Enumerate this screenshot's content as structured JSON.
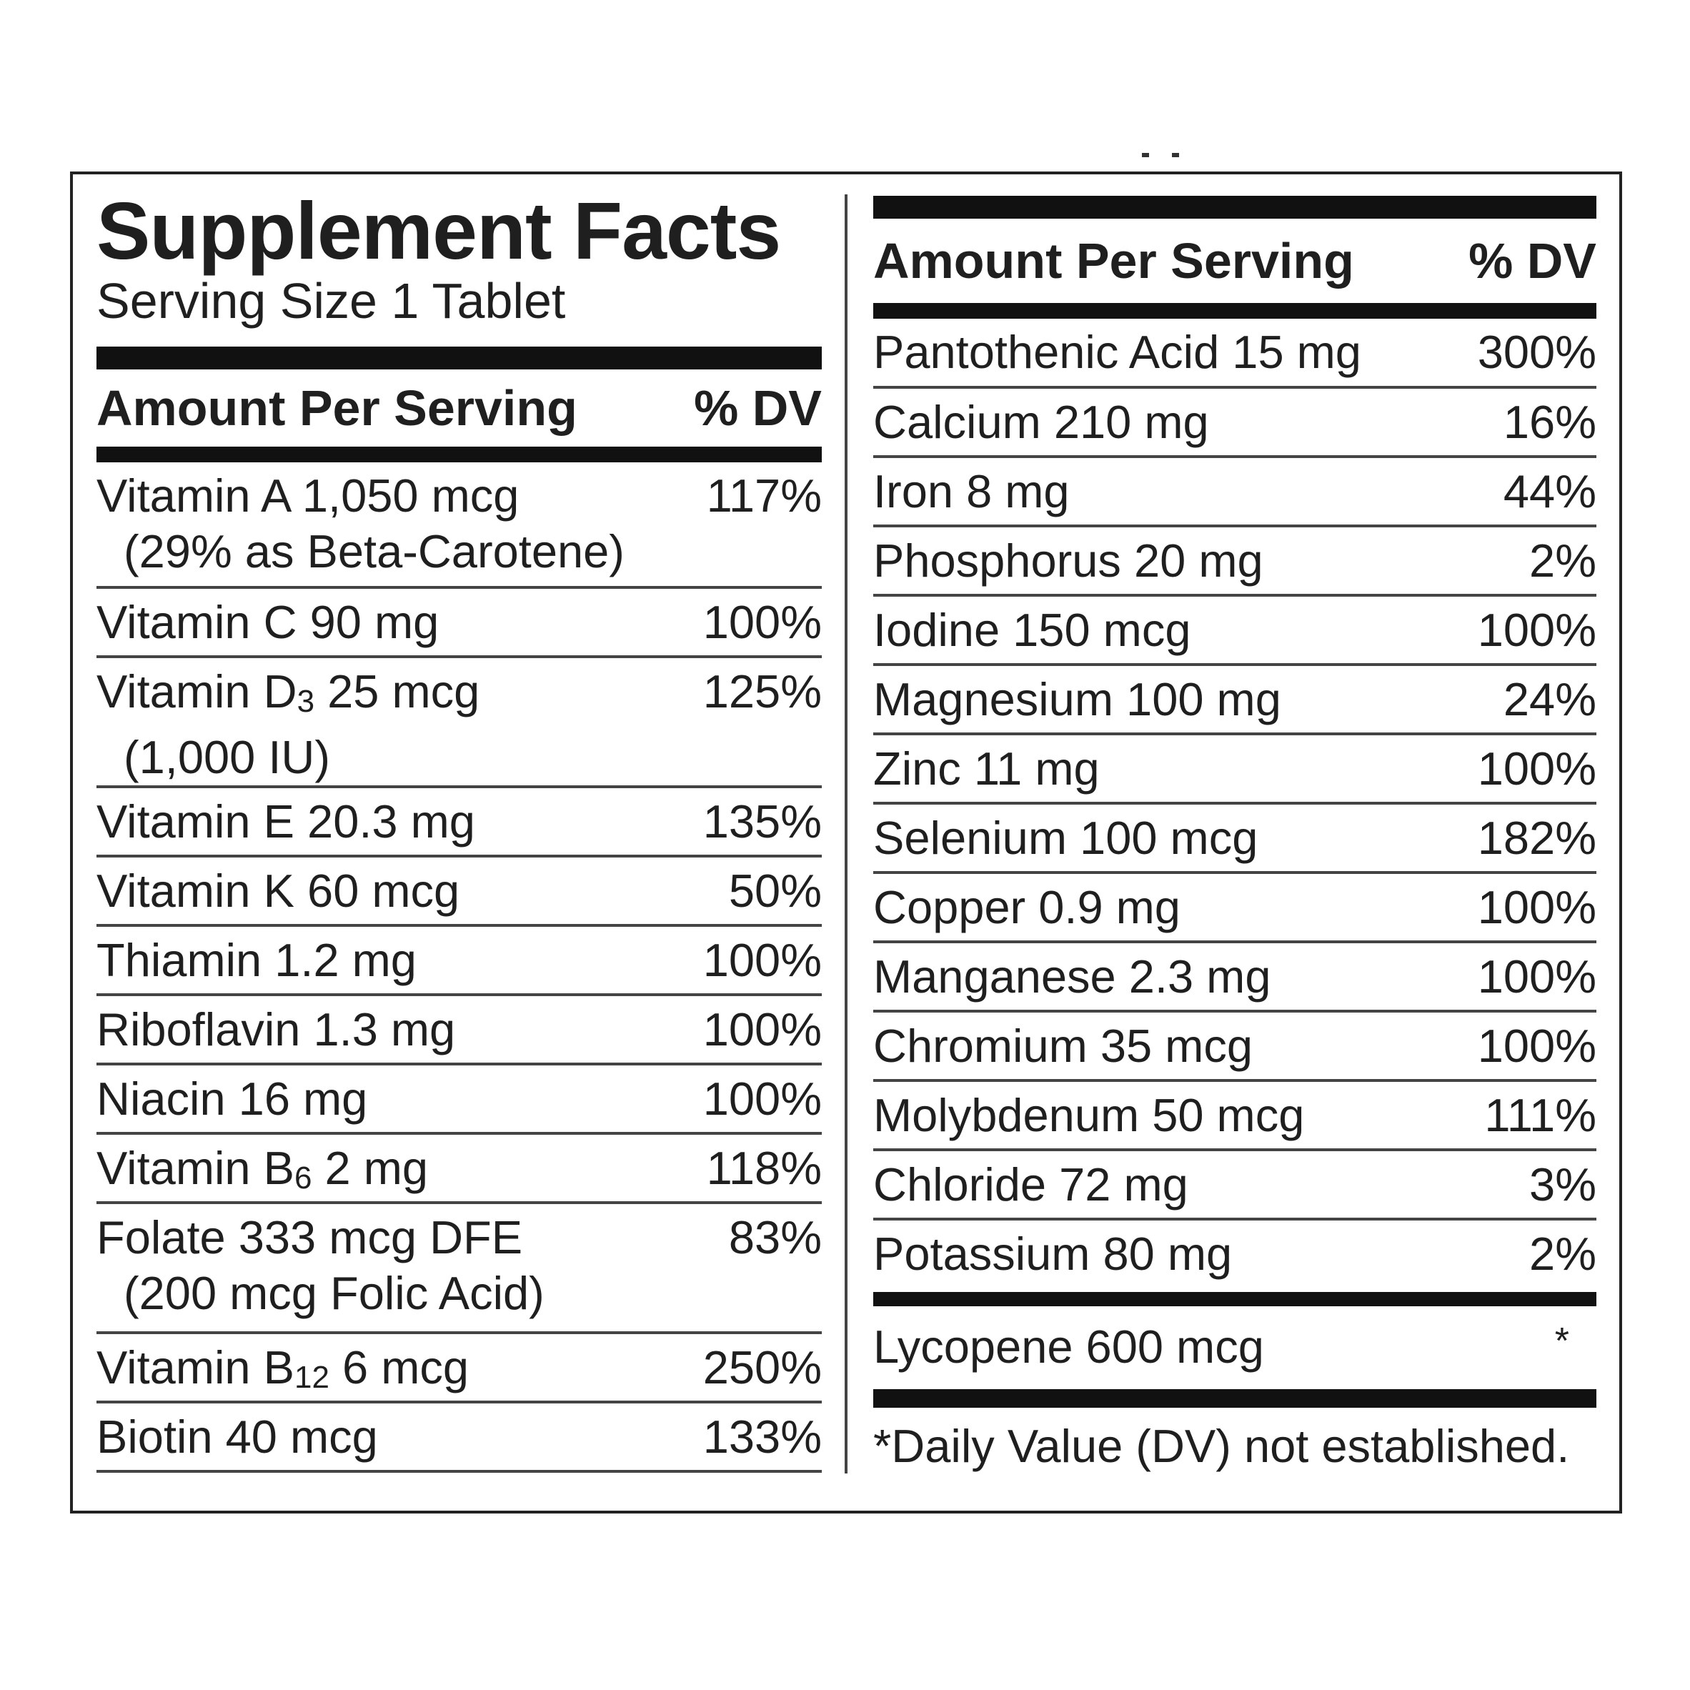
{
  "panel": {
    "title": "Supplement Facts",
    "serving_size": "Serving Size 1 Tablet",
    "amount_header": "Amount Per Serving",
    "dv_header": "% DV"
  },
  "left_rows": [
    {
      "name": "Vitamin A 1,050 mcg",
      "sub": "(29% as Beta-Carotene)",
      "dv": "117%"
    },
    {
      "name": "Vitamin C 90 mg",
      "dv": "100%"
    },
    {
      "name_pre": "Vitamin D",
      "name_sub": "3",
      "name_post": " 25 mcg",
      "sub": "(1,000 IU)",
      "dv": "125%"
    },
    {
      "name": "Vitamin E 20.3 mg",
      "dv": "135%"
    },
    {
      "name": "Vitamin K 60 mcg",
      "dv": "50%"
    },
    {
      "name": "Thiamin 1.2 mg",
      "dv": "100%"
    },
    {
      "name": "Riboflavin 1.3 mg",
      "dv": "100%"
    },
    {
      "name": "Niacin 16 mg",
      "dv": "100%"
    },
    {
      "name_pre": "Vitamin B",
      "name_sub": "6",
      "name_post": " 2 mg",
      "dv": "118%"
    },
    {
      "name": "Folate 333 mcg DFE",
      "sub": "(200 mcg Folic Acid)",
      "dv": "83%"
    },
    {
      "name_pre": "Vitamin B",
      "name_sub": "12",
      "name_post": " 6 mcg",
      "dv": "250%"
    },
    {
      "name": "Biotin 40 mcg",
      "dv": "133%"
    }
  ],
  "right_rows": [
    {
      "name": "Pantothenic Acid 15 mg",
      "dv": "300%"
    },
    {
      "name": "Calcium 210 mg",
      "dv": "16%"
    },
    {
      "name": "Iron 8 mg",
      "dv": "44%"
    },
    {
      "name": "Phosphorus 20 mg",
      "dv": "2%"
    },
    {
      "name": "Iodine 150 mcg",
      "dv": "100%"
    },
    {
      "name": "Magnesium 100 mg",
      "dv": "24%"
    },
    {
      "name": "Zinc 11 mg",
      "dv": "100%"
    },
    {
      "name": "Selenium 100 mcg",
      "dv": "182%"
    },
    {
      "name": "Copper 0.9 mg",
      "dv": "100%"
    },
    {
      "name": "Manganese 2.3 mg",
      "dv": "100%"
    },
    {
      "name": "Chromium 35 mcg",
      "dv": "100%"
    },
    {
      "name": "Molybdenum 50 mcg",
      "dv": "111%"
    },
    {
      "name": "Chloride 72 mg",
      "dv": "3%"
    },
    {
      "name": "Potassium 80 mg",
      "dv": "2%"
    }
  ],
  "other": {
    "name": "Lycopene 600 mcg",
    "dv": "*"
  },
  "footnote": "*Daily Value (DV) not established."
}
